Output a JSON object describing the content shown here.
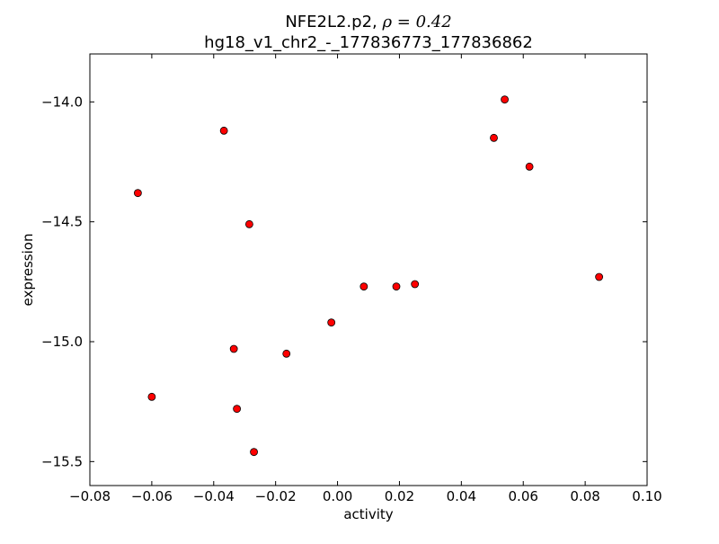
{
  "chart_data": {
    "type": "scatter",
    "title_line1_prefix": "NFE2L2.p2, ",
    "title_line1_math": "ρ = 0.42",
    "title_line2": "hg18_v1_chr2_-_177836773_177836862",
    "xlabel": "activity",
    "ylabel": "expression",
    "xlim": [
      -0.08,
      0.1
    ],
    "ylim": [
      -15.6,
      -13.8
    ],
    "xticks": [
      -0.08,
      -0.06,
      -0.04,
      -0.02,
      0.0,
      0.02,
      0.04,
      0.06,
      0.08,
      0.1
    ],
    "xtick_labels": [
      "−0.08",
      "−0.06",
      "−0.04",
      "−0.02",
      "0.00",
      "0.02",
      "0.04",
      "0.06",
      "0.08",
      "0.10"
    ],
    "yticks": [
      -14.0,
      -14.5,
      -15.0,
      -15.5
    ],
    "ytick_labels": [
      "−14.0",
      "−14.5",
      "−15.0",
      "−15.5"
    ],
    "marker_color": "#ff0000",
    "marker_edge": "#000000",
    "grid": false,
    "x": [
      -0.0645,
      -0.0367,
      -0.0285,
      -0.06,
      -0.0335,
      -0.0325,
      -0.027,
      -0.0165,
      -0.002,
      0.0085,
      0.019,
      0.025,
      0.0505,
      0.054,
      0.062,
      0.0845
    ],
    "y": [
      -14.38,
      -14.12,
      -14.51,
      -15.23,
      -15.03,
      -15.28,
      -15.46,
      -15.05,
      -14.92,
      -14.77,
      -14.77,
      -14.76,
      -14.15,
      -13.99,
      -14.27,
      -14.73
    ]
  }
}
